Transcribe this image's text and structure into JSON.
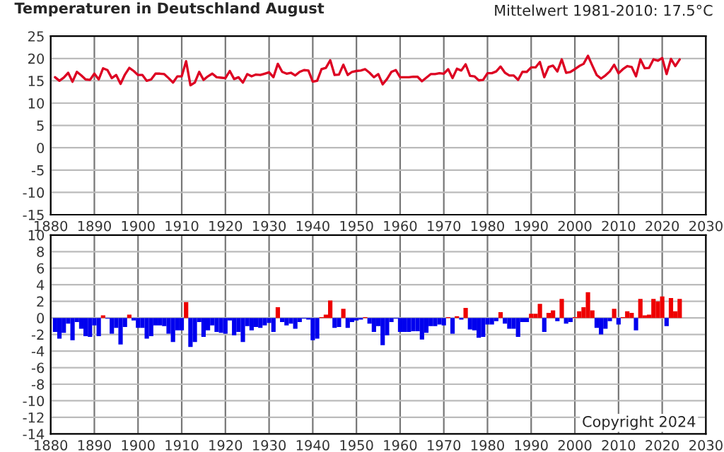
{
  "chart_data": [
    {
      "type": "line",
      "title": "Temperaturen in Deutschland August",
      "annotations": [
        "Mittelwert 1981-2010: 17.5°C"
      ],
      "x": [
        1881,
        1882,
        1883,
        1884,
        1885,
        1886,
        1887,
        1888,
        1889,
        1890,
        1891,
        1892,
        1893,
        1894,
        1895,
        1896,
        1897,
        1898,
        1899,
        1900,
        1901,
        1902,
        1903,
        1904,
        1905,
        1906,
        1907,
        1908,
        1909,
        1910,
        1911,
        1912,
        1913,
        1914,
        1915,
        1916,
        1917,
        1918,
        1919,
        1920,
        1921,
        1922,
        1923,
        1924,
        1925,
        1926,
        1927,
        1928,
        1929,
        1930,
        1931,
        1932,
        1933,
        1934,
        1935,
        1936,
        1937,
        1938,
        1939,
        1940,
        1941,
        1942,
        1943,
        1944,
        1945,
        1946,
        1947,
        1948,
        1949,
        1950,
        1951,
        1952,
        1953,
        1954,
        1955,
        1956,
        1957,
        1958,
        1959,
        1960,
        1961,
        1962,
        1963,
        1964,
        1965,
        1966,
        1967,
        1968,
        1969,
        1970,
        1971,
        1972,
        1973,
        1974,
        1975,
        1976,
        1977,
        1978,
        1979,
        1980,
        1981,
        1982,
        1983,
        1984,
        1985,
        1986,
        1987,
        1988,
        1989,
        1990,
        1991,
        1992,
        1993,
        1994,
        1995,
        1996,
        1997,
        1998,
        1999,
        2000,
        2001,
        2002,
        2003,
        2004,
        2005,
        2006,
        2007,
        2008,
        2009,
        2010,
        2011,
        2012,
        2013,
        2014,
        2015,
        2016,
        2017,
        2018,
        2019,
        2020,
        2021,
        2022,
        2023,
        2024
      ],
      "series": [
        {
          "color": "#dd0022",
          "values": [
            15.8,
            15.0,
            15.7,
            16.8,
            14.8,
            17.0,
            16.2,
            15.3,
            15.2,
            16.6,
            15.3,
            17.8,
            17.4,
            15.6,
            16.3,
            14.3,
            16.4,
            17.9,
            17.2,
            16.3,
            16.3,
            15.0,
            15.3,
            16.6,
            16.6,
            16.5,
            15.6,
            14.6,
            16.0,
            16.0,
            19.4,
            14.0,
            14.6,
            17.0,
            15.2,
            16.0,
            16.6,
            15.8,
            15.7,
            15.6,
            17.2,
            15.4,
            15.8,
            14.6,
            16.5,
            16.0,
            16.4,
            16.3,
            16.6,
            16.9,
            15.8,
            18.8,
            17.0,
            16.6,
            16.8,
            16.2,
            17.0,
            17.4,
            17.3,
            14.8,
            15.0,
            17.6,
            17.9,
            19.6,
            16.3,
            16.4,
            18.6,
            16.3,
            17.0,
            17.2,
            17.3,
            17.6,
            16.8,
            15.8,
            16.5,
            14.2,
            15.4,
            17.0,
            17.4,
            15.8,
            15.8,
            15.8,
            15.9,
            15.9,
            14.9,
            15.7,
            16.5,
            16.5,
            16.7,
            16.6,
            17.6,
            15.6,
            17.7,
            17.3,
            18.7,
            16.1,
            16.0,
            15.1,
            15.2,
            16.7,
            16.7,
            17.1,
            18.2,
            16.8,
            16.2,
            16.2,
            15.2,
            17.0,
            17.0,
            18.0,
            18.0,
            19.2,
            15.8,
            18.1,
            18.4,
            17.1,
            19.8,
            16.8,
            17.0,
            17.6,
            18.3,
            18.8,
            20.6,
            18.4,
            16.3,
            15.5,
            16.2,
            17.1,
            18.6,
            16.7,
            17.6,
            18.3,
            18.1,
            16.0,
            19.8,
            17.8,
            17.9,
            19.8,
            19.5,
            20.1,
            16.5,
            19.9,
            18.3,
            19.8
          ]
        }
      ],
      "xlim": [
        1880,
        2030
      ],
      "xticks": [
        1880,
        1890,
        1900,
        1910,
        1920,
        1930,
        1940,
        1950,
        1960,
        1970,
        1980,
        1990,
        2000,
        2010,
        2020,
        2030
      ],
      "ylim": [
        -15,
        25
      ],
      "yticks": [
        -15,
        -10,
        -5,
        0,
        5,
        10,
        15,
        20,
        25
      ],
      "grid": true,
      "marker": "none",
      "line_style": "solid"
    },
    {
      "type": "bar",
      "annotations": [
        "Copyright 2024"
      ],
      "series": [
        {
          "color": "#ee0000",
          "x": [
            1892,
            1898,
            1911,
            1932,
            1942,
            1943,
            1944,
            1947,
            1952,
            1971,
            1973,
            1975,
            1983,
            1990,
            1991,
            1992,
            1994,
            1995,
            1997,
            2000,
            2001,
            2002,
            2003,
            2004,
            2009,
            2011,
            2012,
            2013,
            2015,
            2016,
            2017,
            2018,
            2019,
            2020,
            2022,
            2023,
            2024
          ],
          "values": [
            0.3,
            0.4,
            1.9,
            1.3,
            0.1,
            0.4,
            2.1,
            1.1,
            0.1,
            0.1,
            0.2,
            1.2,
            0.7,
            0.5,
            0.5,
            1.7,
            0.6,
            0.9,
            2.3,
            0.1,
            0.8,
            1.3,
            3.1,
            0.9,
            1.1,
            0.1,
            0.8,
            0.6,
            2.3,
            0.3,
            0.4,
            2.3,
            2.0,
            2.6,
            2.4,
            0.8,
            2.3
          ]
        },
        {
          "color": "#0000ee",
          "x": [
            1881,
            1882,
            1883,
            1884,
            1885,
            1886,
            1887,
            1888,
            1889,
            1890,
            1891,
            1893,
            1894,
            1895,
            1896,
            1897,
            1899,
            1900,
            1901,
            1902,
            1903,
            1904,
            1905,
            1906,
            1907,
            1908,
            1909,
            1910,
            1912,
            1913,
            1914,
            1915,
            1916,
            1917,
            1918,
            1919,
            1920,
            1921,
            1922,
            1923,
            1924,
            1925,
            1926,
            1927,
            1928,
            1929,
            1930,
            1931,
            1933,
            1934,
            1935,
            1936,
            1937,
            1938,
            1939,
            1940,
            1941,
            1945,
            1946,
            1948,
            1949,
            1950,
            1951,
            1953,
            1954,
            1955,
            1956,
            1957,
            1958,
            1959,
            1960,
            1961,
            1962,
            1963,
            1964,
            1965,
            1966,
            1967,
            1968,
            1969,
            1970,
            1972,
            1974,
            1976,
            1977,
            1978,
            1979,
            1980,
            1981,
            1982,
            1984,
            1985,
            1986,
            1987,
            1988,
            1989,
            1993,
            1996,
            1998,
            1999,
            2005,
            2006,
            2007,
            2008,
            2010,
            2014,
            2021
          ],
          "values": [
            -1.7,
            -2.5,
            -1.8,
            -0.7,
            -2.7,
            -0.5,
            -1.3,
            -2.2,
            -2.3,
            -0.9,
            -2.2,
            -0.1,
            -1.9,
            -1.2,
            -3.2,
            -1.1,
            -0.3,
            -1.2,
            -1.2,
            -2.5,
            -2.2,
            -0.9,
            -0.9,
            -1.0,
            -1.9,
            -2.9,
            -1.5,
            -1.5,
            -3.5,
            -2.9,
            -0.5,
            -2.3,
            -1.5,
            -0.9,
            -1.7,
            -1.8,
            -1.9,
            -0.3,
            -2.1,
            -1.7,
            -2.9,
            -1.0,
            -1.5,
            -1.1,
            -1.2,
            -0.9,
            -0.6,
            -1.7,
            -0.5,
            -0.9,
            -0.7,
            -1.3,
            -0.5,
            -0.1,
            -0.2,
            -2.7,
            -2.5,
            -1.2,
            -1.1,
            -1.2,
            -0.5,
            -0.3,
            -0.2,
            -0.7,
            -1.7,
            -1.0,
            -3.3,
            -2.1,
            -0.5,
            -0.1,
            -1.7,
            -1.7,
            -1.7,
            -1.6,
            -1.6,
            -2.6,
            -1.8,
            -1.0,
            -1.0,
            -0.8,
            -0.9,
            -1.9,
            -0.2,
            -1.4,
            -1.5,
            -2.4,
            -2.3,
            -0.8,
            -0.8,
            -0.4,
            -0.7,
            -1.3,
            -1.3,
            -2.3,
            -0.5,
            -0.5,
            -1.7,
            -0.4,
            -0.7,
            -0.5,
            -1.2,
            -2.0,
            -1.3,
            -0.4,
            -0.8,
            -1.5,
            -1.0
          ]
        }
      ],
      "xlim": [
        1880,
        2030
      ],
      "xticks": [
        1880,
        1890,
        1900,
        1910,
        1920,
        1930,
        1940,
        1950,
        1960,
        1970,
        1980,
        1990,
        2000,
        2010,
        2020,
        2030
      ],
      "ylim": [
        -14,
        10
      ],
      "yticks": [
        -14,
        -12,
        -10,
        -8,
        -6,
        -4,
        -2,
        0,
        2,
        4,
        6,
        8,
        10
      ],
      "grid": true
    }
  ]
}
